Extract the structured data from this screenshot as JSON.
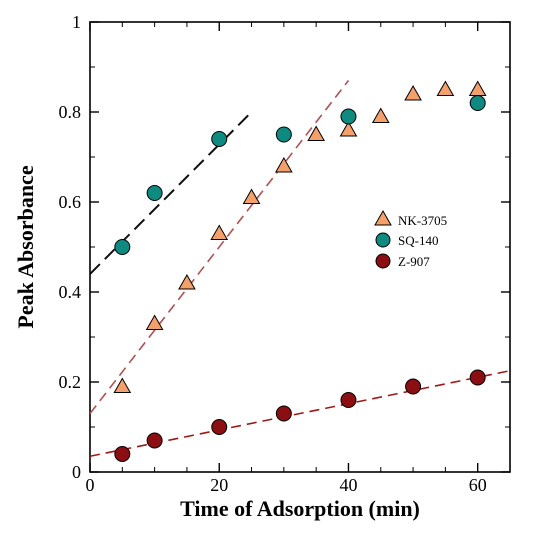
{
  "chart_data": {
    "type": "scatter",
    "title": "",
    "xlabel": "Time of Adsorption (min)",
    "ylabel": "Peak Absorbance",
    "xlim": [
      0,
      65
    ],
    "ylim": [
      0,
      1
    ],
    "xticks": [
      0,
      20,
      40,
      60
    ],
    "xtick_labels": [
      "0",
      "20",
      "40",
      "60"
    ],
    "yticks": [
      0,
      0.2,
      0.4,
      0.6,
      0.8,
      1
    ],
    "ytick_labels": [
      "0",
      "0.2",
      "0.4",
      "0.6",
      "0.8",
      "1"
    ],
    "grid": false,
    "legend_position": "right-middle",
    "series": [
      {
        "name": "NK-3705",
        "marker": "triangle",
        "color": "#f4a06a",
        "x": [
          5,
          10,
          15,
          20,
          25,
          30,
          35,
          40,
          45,
          50,
          55,
          60
        ],
        "y": [
          0.19,
          0.33,
          0.42,
          0.53,
          0.61,
          0.68,
          0.75,
          0.76,
          0.79,
          0.84,
          0.85,
          0.85
        ]
      },
      {
        "name": "SQ-140",
        "marker": "circle",
        "color": "#0f8a80",
        "x": [
          5,
          10,
          20,
          30,
          40,
          60
        ],
        "y": [
          0.5,
          0.62,
          0.74,
          0.75,
          0.79,
          0.82
        ]
      },
      {
        "name": "Z-907",
        "marker": "circle",
        "color": "#8b0f12",
        "x": [
          5,
          10,
          20,
          30,
          40,
          50,
          60
        ],
        "y": [
          0.04,
          0.07,
          0.1,
          0.13,
          0.16,
          0.19,
          0.21
        ]
      }
    ],
    "fit_lines": [
      {
        "color": "#111111",
        "x": [
          0,
          25
        ],
        "y": [
          0.44,
          0.8
        ]
      },
      {
        "color": "#b05050",
        "x": [
          0,
          40
        ],
        "y": [
          0.13,
          0.87
        ]
      },
      {
        "color": "#a01818",
        "x": [
          0,
          65
        ],
        "y": [
          0.035,
          0.225
        ]
      }
    ]
  }
}
